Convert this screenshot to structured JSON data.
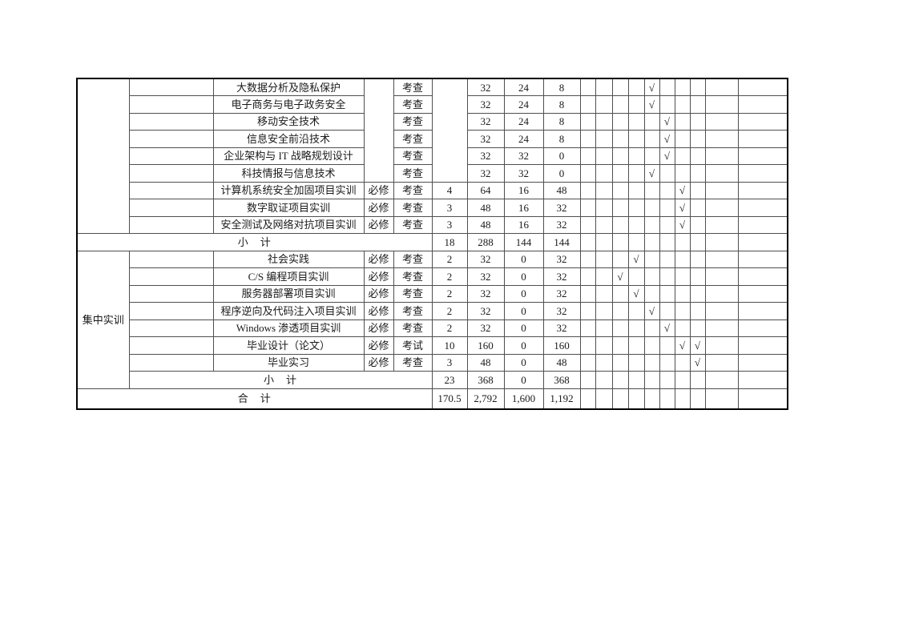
{
  "page": {
    "colors": {
      "page_bg": "#ffffff",
      "ink": "#1a1a1a",
      "grid_line": "#4f4f4f",
      "outer_border": "#000000"
    }
  },
  "table": {
    "checkmark_glyph": "√",
    "semester_column_count": 8,
    "trailing_empty_column_count": 2,
    "sections": [
      {
        "category_label": "",
        "courses": [
          {
            "course": "大数据分析及隐私保护",
            "type": "",
            "exam": "考查",
            "credit": "",
            "total": "32",
            "theory": "24",
            "practice": "8",
            "semesters": [
              5
            ]
          },
          {
            "course": "电子商务与电子政务安全",
            "type": "",
            "exam": "考查",
            "credit": "",
            "total": "32",
            "theory": "24",
            "practice": "8",
            "semesters": [
              5
            ]
          },
          {
            "course": "移动安全技术",
            "type": "",
            "exam": "考查",
            "credit": "",
            "total": "32",
            "theory": "24",
            "practice": "8",
            "semesters": [
              6
            ]
          },
          {
            "course": "信息安全前沿技术",
            "type": "",
            "exam": "考查",
            "credit": "",
            "total": "32",
            "theory": "24",
            "practice": "8",
            "semesters": [
              6
            ]
          },
          {
            "course": "企业架构与 IT 战略规划设计",
            "type": "",
            "exam": "考查",
            "credit": "",
            "total": "32",
            "theory": "32",
            "practice": "0",
            "semesters": [
              6
            ]
          },
          {
            "course": "科技情报与信息技术",
            "type": "",
            "exam": "考查",
            "credit": "",
            "total": "32",
            "theory": "32",
            "practice": "0",
            "semesters": [
              5
            ]
          },
          {
            "course": "计算机系统安全加固项目实训",
            "type": "必修",
            "exam": "考查",
            "credit": "4",
            "total": "64",
            "theory": "16",
            "practice": "48",
            "semesters": [
              7
            ]
          },
          {
            "course": "数字取证项目实训",
            "type": "必修",
            "exam": "考查",
            "credit": "3",
            "total": "48",
            "theory": "16",
            "practice": "32",
            "semesters": [
              7
            ]
          },
          {
            "course": "安全测试及网络对抗项目实训",
            "type": "必修",
            "exam": "考查",
            "credit": "3",
            "total": "48",
            "theory": "16",
            "practice": "32",
            "semesters": [
              7
            ]
          }
        ],
        "merged_empty_type_and_credit_rows": 6,
        "subtotal": {
          "label": "小　计",
          "credit": "18",
          "total": "288",
          "theory": "144",
          "practice": "144"
        }
      },
      {
        "category_label": "集中实训",
        "courses": [
          {
            "course": "社会实践",
            "type": "必修",
            "exam": "考查",
            "credit": "2",
            "total": "32",
            "theory": "0",
            "practice": "32",
            "semesters": [
              4
            ]
          },
          {
            "course": "C/S 编程项目实训",
            "type": "必修",
            "exam": "考查",
            "credit": "2",
            "total": "32",
            "theory": "0",
            "practice": "32",
            "semesters": [
              3
            ]
          },
          {
            "course": "服务器部署项目实训",
            "type": "必修",
            "exam": "考查",
            "credit": "2",
            "total": "32",
            "theory": "0",
            "practice": "32",
            "semesters": [
              4
            ]
          },
          {
            "course": "程序逆向及代码注入项目实训",
            "type": "必修",
            "exam": "考查",
            "credit": "2",
            "total": "32",
            "theory": "0",
            "practice": "32",
            "semesters": [
              5
            ]
          },
          {
            "course": "Windows 渗透项目实训",
            "type": "必修",
            "exam": "考查",
            "credit": "2",
            "total": "32",
            "theory": "0",
            "practice": "32",
            "semesters": [
              6
            ]
          },
          {
            "course": "毕业设计（论文）",
            "type": "必修",
            "exam": "考试",
            "credit": "10",
            "total": "160",
            "theory": "0",
            "practice": "160",
            "semesters": [
              7,
              8
            ]
          },
          {
            "course": "毕业实习",
            "type": "必修",
            "exam": "考查",
            "credit": "3",
            "total": "48",
            "theory": "0",
            "practice": "48",
            "semesters": [
              8
            ]
          }
        ],
        "subtotal": {
          "label": "小　计",
          "credit": "23",
          "total": "368",
          "theory": "0",
          "practice": "368"
        }
      }
    ],
    "grand_total": {
      "label": "合　计",
      "credit": "170.5",
      "total": "2,792",
      "theory": "1,600",
      "practice": "1,192"
    }
  }
}
